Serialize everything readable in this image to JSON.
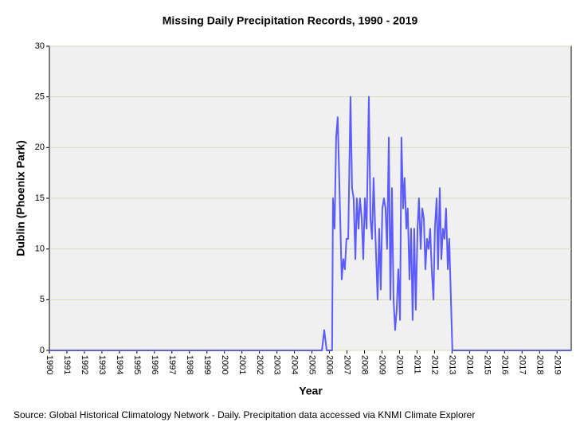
{
  "chart_data": {
    "type": "line",
    "title": "Missing Daily Precipitation Records, 1990 - 2019",
    "x_label": "Year",
    "y_label": "Dublin (Phoenix Park)",
    "source": "Source: Global Historical Climatology Network - Daily. Precipitation data accessed via KNMI Climate Explorer",
    "xlim": [
      1990,
      2019.81
    ],
    "xticks": [
      1990,
      1991,
      1992,
      1993,
      1994,
      1995,
      1996,
      1997,
      1998,
      1999,
      2000,
      2001,
      2002,
      2003,
      2004,
      2005,
      2006,
      2007,
      2008,
      2009,
      2010,
      2011,
      2012,
      2013,
      2014,
      2015,
      2016,
      2017,
      2018,
      2019
    ],
    "ylim": [
      0,
      30
    ],
    "yticks": [
      0,
      5,
      10,
      15,
      20,
      25,
      30
    ],
    "grid": true,
    "series": [
      {
        "color": "#5b5bff",
        "x": [
          1990,
          2005.57,
          2005.7,
          2005.84,
          2006.15,
          2006.2,
          2006.29,
          2006.38,
          2006.47,
          2006.7,
          2006.79,
          2006.88,
          2006.97,
          2007.07,
          2007.2,
          2007.29,
          2007.38,
          2007.48,
          2007.56,
          2007.66,
          2007.74,
          2007.84,
          2007.93,
          2008.02,
          2008.12,
          2008.25,
          2008.34,
          2008.43,
          2008.52,
          2008.61,
          2008.75,
          2008.84,
          2008.93,
          2009.02,
          2009.11,
          2009.2,
          2009.29,
          2009.39,
          2009.48,
          2009.57,
          2009.66,
          2009.75,
          2009.84,
          2009.93,
          2010.03,
          2010.11,
          2010.21,
          2010.29,
          2010.39,
          2010.47,
          2010.57,
          2010.66,
          2010.75,
          2010.84,
          2010.93,
          2011.03,
          2011.11,
          2011.21,
          2011.3,
          2011.39,
          2011.48,
          2011.57,
          2011.66,
          2011.75,
          2011.84,
          2011.94,
          2012.02,
          2012.12,
          2012.2,
          2012.3,
          2012.39,
          2012.48,
          2012.57,
          2012.66,
          2012.76,
          2012.84,
          2013.02,
          2019.81
        ],
        "values": [
          0,
          0,
          2,
          0,
          0,
          15,
          12,
          21,
          23,
          7,
          9,
          8,
          11,
          11,
          25,
          16,
          15,
          9,
          15,
          12,
          15,
          13,
          9,
          15,
          12,
          25,
          13,
          11,
          17,
          12,
          5,
          12,
          6,
          14,
          15,
          14,
          10,
          21,
          5,
          16,
          5,
          2,
          4,
          8,
          3,
          21,
          14,
          17,
          12,
          14,
          7,
          12,
          3,
          12,
          4,
          12,
          15,
          10,
          14,
          13,
          8,
          11,
          10,
          12,
          8,
          5,
          12,
          15,
          8,
          16,
          9,
          12,
          11,
          14,
          8,
          11,
          0,
          0
        ]
      }
    ]
  }
}
